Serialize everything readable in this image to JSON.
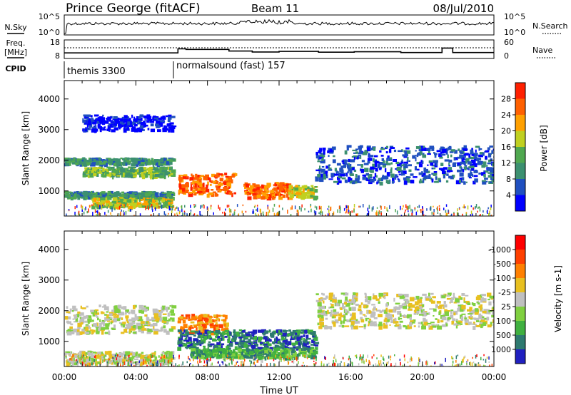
{
  "header": {
    "station": "Prince George (fitACF)",
    "beam": "Beam 11",
    "date": "08/Jul/2010"
  },
  "panels": {
    "nsky": {
      "label": "N.Sky",
      "right_label": "N.Search",
      "left_ticks": [
        "10^5",
        "10^0"
      ],
      "right_ticks": [
        "10^5",
        "10^0"
      ]
    },
    "freq": {
      "label_line1": "Freq.",
      "label_line2": "[MHz]",
      "left_ticks": [
        "18",
        "8"
      ],
      "right_ticks": [
        "60",
        "0"
      ],
      "right_label": "Nave",
      "freq_value_mhz": [
        [
          0.0,
          11.0
        ],
        [
          6.35,
          11.0
        ],
        [
          6.35,
          13.2
        ],
        [
          6.8,
          13.2
        ],
        [
          6.8,
          12.9
        ],
        [
          9.2,
          12.9
        ],
        [
          9.2,
          12.0
        ],
        [
          10.5,
          12.0
        ],
        [
          10.5,
          11.5
        ],
        [
          12.0,
          11.5
        ],
        [
          12.0,
          11.8
        ],
        [
          14.2,
          11.8
        ],
        [
          14.2,
          11.4
        ],
        [
          16.2,
          11.4
        ],
        [
          16.2,
          11.6
        ],
        [
          18.8,
          11.6
        ],
        [
          18.8,
          11.2
        ],
        [
          21.1,
          11.2
        ],
        [
          21.1,
          13.6
        ],
        [
          21.7,
          13.6
        ],
        [
          21.7,
          11.2
        ],
        [
          24.0,
          11.2
        ]
      ]
    },
    "cpid": {
      "label": "CPID",
      "segments": [
        {
          "name": "themis 3300",
          "start_hour": 0.0
        },
        {
          "name": "normalsound (fast) 157",
          "start_hour": 6.1
        }
      ]
    }
  },
  "chart_data": [
    {
      "type": "heatmap",
      "title": "",
      "xlabel": "",
      "ylabel": "Slant Range [km]",
      "xlim_hours": [
        0,
        24
      ],
      "ylim": [
        180,
        4600
      ],
      "yticks": [
        1000,
        2000,
        3000,
        4000
      ],
      "colorbar": {
        "label": "Power [dB]",
        "ticks": [
          "4",
          "8",
          "12",
          "16",
          "20",
          "24",
          "28"
        ],
        "colors": [
          "#0000ff",
          "#2050c0",
          "#3c9070",
          "#50a850",
          "#c0d020",
          "#ffa000",
          "#ff6000",
          "#ff2000"
        ]
      },
      "echo_bands": [
        {
          "t0": 0.0,
          "t1": 6.0,
          "r0": 1900,
          "r1": 2100,
          "level": "12"
        },
        {
          "t0": 1.0,
          "t1": 6.0,
          "r0": 1500,
          "r1": 1800,
          "level": "16"
        },
        {
          "t0": 0.0,
          "t1": 6.0,
          "r0": 800,
          "r1": 1000,
          "level": "12"
        },
        {
          "t0": 1.5,
          "t1": 6.0,
          "r0": 500,
          "r1": 800,
          "level": "20"
        },
        {
          "t0": 6.3,
          "t1": 9.5,
          "r0": 900,
          "r1": 1600,
          "level": "28"
        },
        {
          "t0": 10.0,
          "t1": 12.5,
          "r0": 800,
          "r1": 1300,
          "level": "28"
        },
        {
          "t0": 12.5,
          "t1": 14.0,
          "r0": 800,
          "r1": 1200,
          "level": "20"
        },
        {
          "t0": 14.0,
          "t1": 24.0,
          "r0": 1300,
          "r1": 2500,
          "level": "8"
        },
        {
          "t0": 1.0,
          "t1": 6.0,
          "r0": 3000,
          "r1": 3500,
          "level": "4"
        }
      ]
    },
    {
      "type": "heatmap",
      "title": "",
      "xlabel": "Time UT",
      "ylabel": "Slant Range [km]",
      "xlim_hours": [
        0,
        24
      ],
      "xticks": [
        "00:00",
        "04:00",
        "08:00",
        "12:00",
        "16:00",
        "20:00",
        "00:00"
      ],
      "ylim": [
        180,
        4600
      ],
      "yticks": [
        1000,
        2000,
        3000,
        4000
      ],
      "colorbar": {
        "label": "Velocity [m s-1]",
        "ticks": [
          "1000",
          "500",
          "100",
          "25",
          "-25",
          "-100",
          "-500",
          "-1000"
        ],
        "colors": [
          "#2020c0",
          "#2e7a70",
          "#40b040",
          "#80d040",
          "#c0c0c0",
          "#e8c020",
          "#ff8000",
          "#ff4000",
          "#ff0000"
        ]
      },
      "echo_bands": [
        {
          "t0": 0.0,
          "t1": 6.0,
          "r0": 1300,
          "r1": 2200,
          "level": "-25"
        },
        {
          "t0": 0.0,
          "t1": 6.0,
          "r0": 300,
          "r1": 700,
          "level": "-25"
        },
        {
          "t0": 6.3,
          "t1": 9.0,
          "r0": 1300,
          "r1": 1900,
          "level": "-500"
        },
        {
          "t0": 6.3,
          "t1": 14.0,
          "r0": 800,
          "r1": 1400,
          "level": "500"
        },
        {
          "t0": 7.0,
          "t1": 14.0,
          "r0": 500,
          "r1": 800,
          "level": "100"
        },
        {
          "t0": 14.0,
          "t1": 24.0,
          "r0": 1500,
          "r1": 2600,
          "level": "-25"
        }
      ]
    }
  ]
}
